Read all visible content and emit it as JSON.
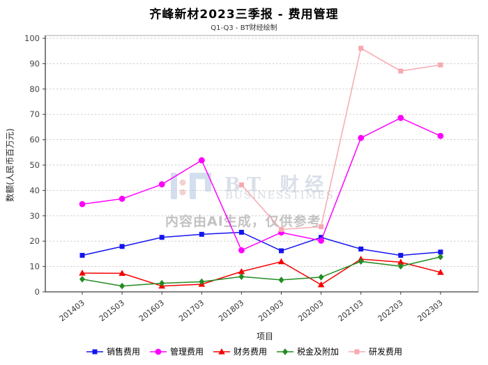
{
  "title": "齐峰新材2023三季报 - 费用管理",
  "subtitle": "Q1-Q3 - BT财经绘制",
  "watermark": {
    "logo_text": "BT 财经",
    "logo_sub": "BUSINESSTIMES",
    "ai_notice": "内容由AI生成，仅供参考"
  },
  "chart_data": {
    "type": "line",
    "title": "齐峰新材2023三季报 - 费用管理",
    "subtitle": "Q1-Q3 - BT财经绘制",
    "xlabel": "项目",
    "ylabel": "数额(人民币百万元)",
    "ylim": [
      0,
      100
    ],
    "ytick_step": 10,
    "grid": true,
    "grid_style": "dashed",
    "legend_position": "bottom",
    "categories": [
      "201403",
      "201503",
      "201603",
      "201703",
      "201803",
      "201903",
      "202003",
      "202103",
      "202203",
      "202303"
    ],
    "series": [
      {
        "name": "销售费用",
        "color": "#1414f0",
        "marker": "square",
        "values": [
          14.4,
          17.9,
          21.5,
          22.7,
          23.5,
          16.2,
          21.5,
          16.9,
          14.4,
          15.7
        ]
      },
      {
        "name": "管理费用",
        "color": "#ff00ff",
        "marker": "circle",
        "values": [
          34.6,
          36.7,
          42.4,
          51.9,
          16.4,
          23.4,
          20.2,
          60.7,
          68.6,
          61.5
        ]
      },
      {
        "name": "财务费用",
        "color": "#f50000",
        "marker": "triangle",
        "values": [
          7.4,
          7.3,
          2.3,
          3.0,
          8.0,
          11.9,
          2.8,
          12.9,
          11.7,
          7.7
        ]
      },
      {
        "name": "税金及附加",
        "color": "#228b22",
        "marker": "diamond",
        "values": [
          5.0,
          2.3,
          3.4,
          4.0,
          6.0,
          4.7,
          5.8,
          12.0,
          10.1,
          13.8
        ]
      },
      {
        "name": "研发费用",
        "color": "#f7a8b0",
        "marker": "square",
        "values": [
          null,
          null,
          null,
          null,
          42.2,
          24.6,
          25.7,
          96.1,
          87.1,
          89.5
        ]
      }
    ]
  }
}
